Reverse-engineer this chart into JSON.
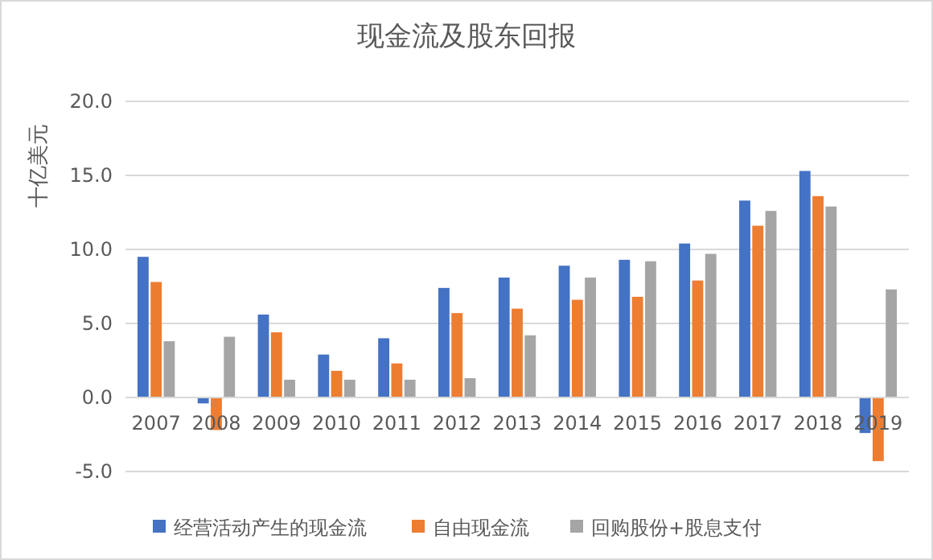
{
  "chart_data": {
    "type": "bar",
    "title": "现金流及股东回报",
    "ylabel": "十亿美元",
    "categories": [
      "2007",
      "2008",
      "2009",
      "2010",
      "2011",
      "2012",
      "2013",
      "2014",
      "2015",
      "2016",
      "2017",
      "2018",
      "2019"
    ],
    "series": [
      {
        "name": "经营活动产生的现金流",
        "color": "#4472c4",
        "values": [
          9.5,
          -0.4,
          5.6,
          2.9,
          4.0,
          7.4,
          8.1,
          8.9,
          9.3,
          10.4,
          13.3,
          15.3,
          -2.4
        ]
      },
      {
        "name": "自由现金流",
        "color": "#ed7d31",
        "values": [
          7.8,
          -2.2,
          4.4,
          1.8,
          2.3,
          5.7,
          6.0,
          6.6,
          6.8,
          7.9,
          11.6,
          13.6,
          -4.3
        ]
      },
      {
        "name": "回购股份+股息支付",
        "color": "#a5a5a5",
        "values": [
          3.8,
          4.1,
          1.2,
          1.2,
          1.2,
          1.3,
          4.2,
          8.1,
          9.2,
          9.7,
          12.6,
          12.9,
          7.3
        ]
      }
    ],
    "ylim": [
      -5,
      20
    ],
    "yticks": [
      {
        "value": -5,
        "label": "-5.0"
      },
      {
        "value": 0,
        "label": "0.0"
      },
      {
        "value": 5,
        "label": "5.0"
      },
      {
        "value": 10,
        "label": "10.0"
      },
      {
        "value": 15,
        "label": "15.0"
      },
      {
        "value": 20,
        "label": "20.0"
      }
    ],
    "grid": "y",
    "legend": "bottom"
  }
}
